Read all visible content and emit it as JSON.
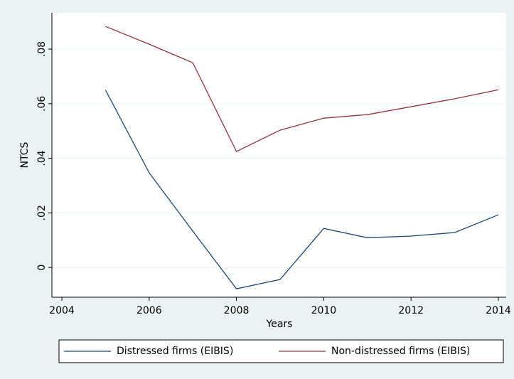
{
  "chart_data": {
    "type": "line",
    "x_label": "Years",
    "y_label": "NTCS",
    "x": [
      2005,
      2006,
      2007,
      2008,
      2009,
      2010,
      2011,
      2012,
      2013,
      2014
    ],
    "series": [
      {
        "name": "Distressed firms (EIBIS)",
        "color": "#1a476f",
        "values": [
          0.065,
          0.0347,
          0.0133,
          -0.0078,
          -0.0044,
          0.0143,
          0.0109,
          0.0115,
          0.0128,
          0.0193
        ]
      },
      {
        "name": "Non-distressed firms (EIBIS)",
        "color": "#90353b",
        "values": [
          0.0883,
          0.0818,
          0.075,
          0.0425,
          0.0503,
          0.0547,
          0.056,
          0.0589,
          0.0618,
          0.0651
        ]
      }
    ],
    "xlim": [
      2004,
      2014
    ],
    "xticks": [
      2004,
      2006,
      2008,
      2010,
      2012,
      2014
    ],
    "ylim": [
      -0.0109,
      0.0933
    ],
    "yticks": [
      0,
      {
        "value": 0.02,
        "label": ".02"
      },
      {
        "value": 0.04,
        "label": ".04"
      },
      {
        "value": 0.06,
        "label": ".06"
      },
      {
        "value": 0.08,
        "label": ".08"
      }
    ],
    "grid": true,
    "legend": "bottom"
  }
}
